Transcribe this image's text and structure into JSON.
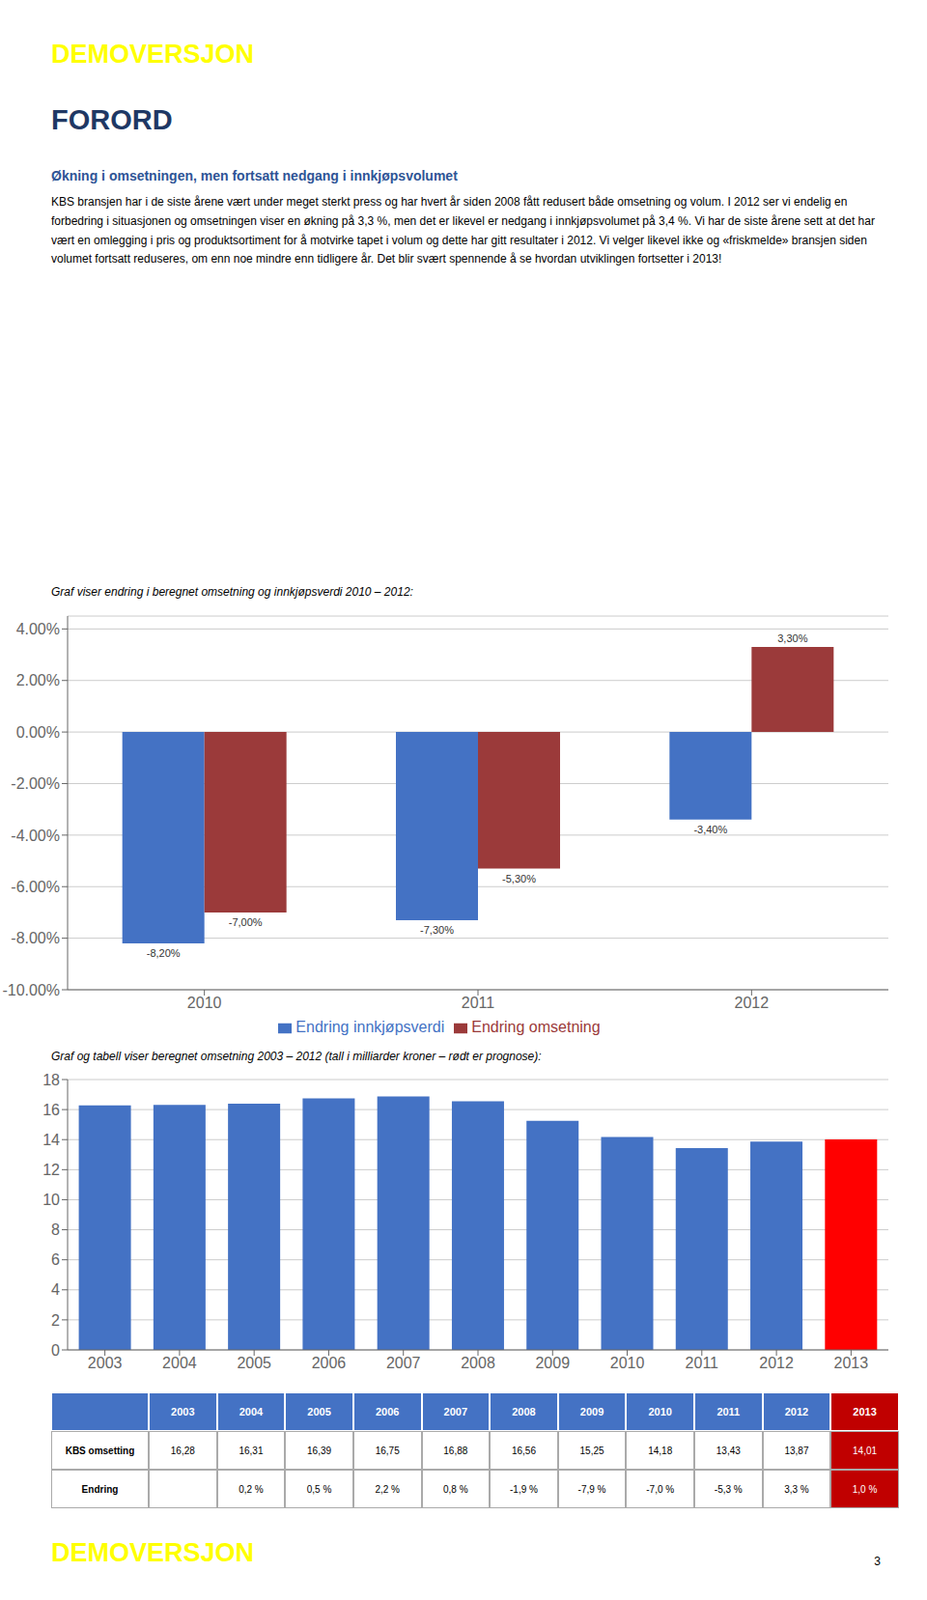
{
  "annotations": [
    {
      "text": "DEMOVERSJON",
      "color": "#FFFF00"
    },
    {
      "text": "FORORD",
      "color": "#1F3864"
    },
    {
      "text": "Økning i omsetningen, men fortsatt nedgang i innkjøpsvolumet",
      "color": "#2E5496"
    },
    {
      "text": "KBS bransjen har i de siste årene vært under meget sterkt press og har hvert år siden 2008 fått redusert både omsetning og volum. I 2012 ser vi endelig en forbedring i situasjonen og omsetningen viser en økning på 3,3 %, men det er likevel er nedgang i innkjøpsvolumet på 3,4 %. Vi har de siste årene sett at det har vært en omlegging i pris og produktsortiment for å motvirke tapet i volum og dette har gitt resultater i 2012. Vi velger likevel ikke og «friskmelde» bransjen siden volumet fortsatt reduseres, om enn noe mindre enn tidligere år. Det blir svært spennende å se hvordan utviklingen fortsetter i 2013!",
      "color": "#000000"
    },
    {
      "text": "3",
      "color": "#000000"
    },
    {
      "text": "DEMOVERSJON",
      "color": "#FFFF00"
    }
  ],
  "chart_data": [
    {
      "type": "bar",
      "title": "Graf viser endring i beregnet omsetning og innkjøpsverdi 2010 – 2012:",
      "categories": [
        "2010",
        "2011",
        "2012"
      ],
      "series": [
        {
          "name": "Endring innkjøpsverdi",
          "color": "#4472C4",
          "values": [
            -8.2,
            -7.3,
            -3.4
          ],
          "value_labels": [
            "-8,20%",
            "-7,30%",
            "-3,40%"
          ]
        },
        {
          "name": "Endring omsetning",
          "color": "#9B3A3A",
          "values": [
            -7.0,
            -5.3,
            3.3
          ],
          "value_labels": [
            "-7,00%",
            "-5,30%",
            "3,30%"
          ]
        }
      ],
      "ylim": [
        -10.0,
        4.5
      ],
      "yticks": [
        {
          "value": -10.0,
          "label": "-10.00%"
        },
        {
          "value": -8.0,
          "label": "-8.00%"
        },
        {
          "value": -6.0,
          "label": "-6.00%"
        },
        {
          "value": -4.0,
          "label": "-4.00%"
        },
        {
          "value": -2.0,
          "label": "-2.00%"
        },
        {
          "value": 0.0,
          "label": "0.00%"
        },
        {
          "value": 2.0,
          "label": "2.00%"
        },
        {
          "value": 4.0,
          "label": "4.00%"
        }
      ],
      "grid": true,
      "legend": "bottom",
      "data_labels": true
    },
    {
      "type": "bar",
      "title": "Graf og tabell viser beregnet omsetning 2003 – 2012 (tall i milliarder kroner – rødt er prognose):",
      "categories": [
        "2003",
        "2004",
        "2005",
        "2006",
        "2007",
        "2008",
        "2009",
        "2010",
        "2011",
        "2012",
        "2013"
      ],
      "values": [
        16.28,
        16.31,
        16.39,
        16.75,
        16.88,
        16.56,
        15.25,
        14.18,
        13.43,
        13.87,
        14.01
      ],
      "colors": [
        "#4472C4",
        "#4472C4",
        "#4472C4",
        "#4472C4",
        "#4472C4",
        "#4472C4",
        "#4472C4",
        "#4472C4",
        "#4472C4",
        "#4472C4",
        "#FF0000"
      ],
      "ylim": [
        0,
        18
      ],
      "yticks": [
        0,
        2,
        4,
        6,
        8,
        10,
        12,
        14,
        16,
        18
      ],
      "grid": true,
      "table": {
        "columns": [
          "2003",
          "2004",
          "2005",
          "2006",
          "2007",
          "2008",
          "2009",
          "2010",
          "2011",
          "2012",
          "2013"
        ],
        "color": "#4472C4",
        "colors": [
          "#4472C4",
          "#4472C4",
          "#4472C4",
          "#4472C4",
          "#4472C4",
          "#4472C4",
          "#4472C4",
          "#4472C4",
          "#4472C4",
          "#4472C4",
          "#C00000"
        ],
        "rows": [
          {
            "name": "KBS omsetting",
            "values": [
              "16,28",
              "16,31",
              "16,39",
              "16,75",
              "16,88",
              "16,56",
              "15,25",
              "14,18",
              "13,43",
              "13,87",
              "14,01"
            ]
          },
          {
            "name": "Endring",
            "values": [
              null,
              "0,2 %",
              "0,5 %",
              "2,2 %",
              "0,8 %",
              "-1,9 %",
              "-7,9 %",
              "-7,0 %",
              "-5,3 %",
              "3,3 %",
              "1,0 %"
            ]
          }
        ]
      }
    }
  ]
}
